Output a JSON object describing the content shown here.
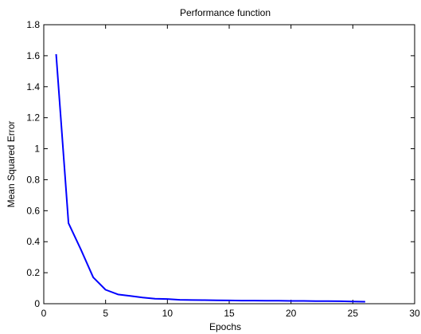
{
  "chart_data": {
    "type": "line",
    "title": "Performance function",
    "xlabel": "Epochs",
    "ylabel": "Mean Squared Error",
    "xlim": [
      0,
      30
    ],
    "ylim": [
      0,
      1.8
    ],
    "x_ticks": [
      0,
      5,
      10,
      15,
      20,
      25,
      30
    ],
    "y_ticks": [
      0,
      0.2,
      0.4,
      0.6,
      0.8,
      1,
      1.2,
      1.4,
      1.6,
      1.8
    ],
    "x_tick_labels": [
      "0",
      "5",
      "10",
      "15",
      "20",
      "25",
      "30"
    ],
    "y_tick_labels": [
      "0",
      "0.2",
      "0.4",
      "0.6",
      "0.8",
      "1",
      "1.2",
      "1.4",
      "1.6",
      "1.8"
    ],
    "grid": false,
    "series": [
      {
        "color": "#0000ff",
        "x": [
          1,
          2,
          3,
          4,
          5,
          6,
          7,
          8,
          9,
          10,
          11,
          12,
          13,
          14,
          15,
          16,
          17,
          18,
          19,
          20,
          21,
          22,
          23,
          24,
          25,
          26
        ],
        "y": [
          1.61,
          0.52,
          0.35,
          0.17,
          0.09,
          0.06,
          0.05,
          0.04,
          0.032,
          0.03,
          0.025,
          0.024,
          0.023,
          0.022,
          0.021,
          0.02,
          0.02,
          0.019,
          0.019,
          0.018,
          0.018,
          0.017,
          0.017,
          0.016,
          0.014,
          0.013
        ]
      }
    ]
  }
}
